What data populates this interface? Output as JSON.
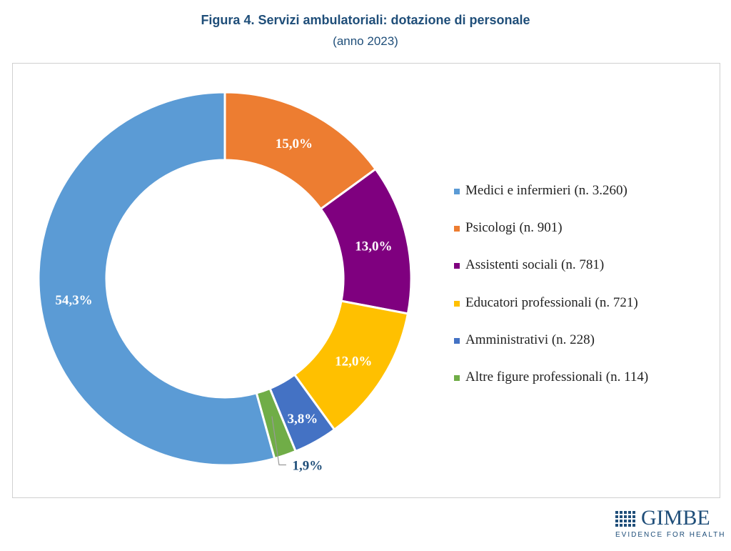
{
  "title": "Figura 4. Servizi ambulatoriali: dotazione di personale",
  "subtitle": "(anno 2023)",
  "logo": {
    "name": "GIMBE",
    "tagline": "EVIDENCE FOR HEALTH"
  },
  "chart_data": {
    "type": "pie",
    "variant": "donut",
    "title": "Figura 4. Servizi ambulatoriali: dotazione di personale",
    "subtitle": "(anno 2023)",
    "legend_position": "right",
    "slices": [
      {
        "name": "Medici e infermieri (n. 3.260)",
        "count": 3260,
        "percent": 54.3,
        "label": "54,3%",
        "color": "#5b9bd5"
      },
      {
        "name": "Psicologi (n. 901)",
        "count": 901,
        "percent": 15.0,
        "label": "15,0%",
        "color": "#ed7d31"
      },
      {
        "name": "Assistenti sociali (n. 781)",
        "count": 781,
        "percent": 13.0,
        "label": "13,0%",
        "color": "#7f007f"
      },
      {
        "name": "Educatori professionali (n. 721)",
        "count": 721,
        "percent": 12.0,
        "label": "12,0%",
        "color": "#ffc000"
      },
      {
        "name": "Amministrativi (n. 228)",
        "count": 228,
        "percent": 3.8,
        "label": "3,8%",
        "color": "#4472c4"
      },
      {
        "name": "Altre figure professionali (n. 114)",
        "count": 114,
        "percent": 1.9,
        "label": "1,9%",
        "color": "#70ad47"
      }
    ]
  }
}
